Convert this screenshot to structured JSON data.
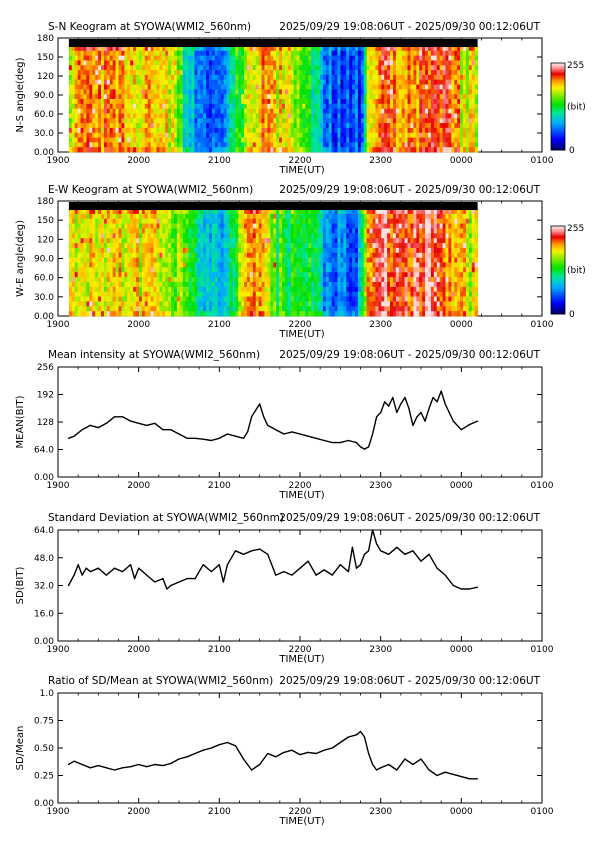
{
  "chart_data": [
    {
      "type": "heatmap",
      "title": "S-N Keogram at SYOWA(WMI2_560nm)",
      "time_range": "2025/09/29 19:08:06UT - 2025/09/30 00:12:06UT",
      "xlabel": "TIME(UT)",
      "ylabel": "N-S angle(deg)",
      "xticks": [
        "1900",
        "2000",
        "2100",
        "2200",
        "2300",
        "0000",
        "0100"
      ],
      "yticks": [
        "0.00",
        "30.0",
        "60.0",
        "90.0",
        "120",
        "150",
        "180"
      ],
      "colorbar": {
        "min_label": "0",
        "max_label": "255",
        "unit": "(bit)"
      },
      "x_range_hours": [
        19,
        25
      ],
      "data_x_range_hours": [
        19.135,
        24.202
      ],
      "y_range": [
        0,
        180
      ],
      "intensity_profile": {
        "t": [
          19.13,
          19.3,
          19.5,
          19.7,
          19.9,
          20.0,
          20.2,
          20.4,
          20.5,
          20.6,
          20.8,
          21.0,
          21.2,
          21.4,
          21.5,
          21.7,
          21.9,
          22.1,
          22.3,
          22.5,
          22.7,
          22.75,
          22.85,
          23.0,
          23.2,
          23.4,
          23.6,
          23.8,
          24.0,
          24.2
        ],
        "v": [
          0.72,
          0.78,
          0.8,
          0.78,
          0.75,
          0.76,
          0.74,
          0.72,
          0.6,
          0.35,
          0.22,
          0.2,
          0.5,
          0.7,
          0.8,
          0.72,
          0.7,
          0.55,
          0.25,
          0.2,
          0.18,
          0.18,
          0.7,
          0.85,
          0.78,
          0.82,
          0.8,
          0.85,
          0.72,
          0.7
        ]
      }
    },
    {
      "type": "heatmap",
      "title": "E-W Keogram at SYOWA(WMI2_560nm)",
      "time_range": "2025/09/29 19:08:06UT - 2025/09/30 00:12:06UT",
      "xlabel": "TIME(UT)",
      "ylabel": "W-E angle(deg)",
      "xticks": [
        "1900",
        "2000",
        "2100",
        "2200",
        "2300",
        "0000",
        "0100"
      ],
      "yticks": [
        "0.00",
        "30.0",
        "60.0",
        "90.0",
        "120",
        "150",
        "180"
      ],
      "colorbar": {
        "min_label": "0",
        "max_label": "255",
        "unit": "(bit)"
      },
      "x_range_hours": [
        19,
        25
      ],
      "data_x_range_hours": [
        19.135,
        24.202
      ],
      "y_range": [
        0,
        180
      ],
      "intensity_profile": {
        "t": [
          19.13,
          19.3,
          19.5,
          19.7,
          19.9,
          20.0,
          20.2,
          20.4,
          20.6,
          20.8,
          21.0,
          21.2,
          21.4,
          21.5,
          21.7,
          21.9,
          22.1,
          22.3,
          22.5,
          22.7,
          22.85,
          23.0,
          23.2,
          23.4,
          23.6,
          23.8,
          24.0,
          24.2
        ],
        "v": [
          0.7,
          0.74,
          0.72,
          0.7,
          0.68,
          0.7,
          0.66,
          0.62,
          0.58,
          0.4,
          0.3,
          0.55,
          0.8,
          0.72,
          0.55,
          0.5,
          0.55,
          0.3,
          0.25,
          0.22,
          0.85,
          0.9,
          0.85,
          0.88,
          0.95,
          0.78,
          0.7,
          0.7
        ]
      }
    },
    {
      "type": "line",
      "title": "Mean intensity at SYOWA(WMI2_560nm)",
      "time_range": "2025/09/29 19:08:06UT - 2025/09/30 00:12:06UT",
      "xlabel": "TIME(UT)",
      "ylabel": "MEAN(BIT)",
      "xticks": [
        "1900",
        "2000",
        "2100",
        "2200",
        "2300",
        "0000",
        "0100"
      ],
      "yticks": [
        "0.00",
        "64.0",
        "128",
        "192",
        "256"
      ],
      "x_range_hours": [
        19,
        25
      ],
      "ylim": [
        0,
        256
      ],
      "series": [
        {
          "x": [
            19.13,
            19.2,
            19.3,
            19.4,
            19.5,
            19.6,
            19.7,
            19.8,
            19.9,
            20.0,
            20.1,
            20.2,
            20.3,
            20.4,
            20.5,
            20.6,
            20.7,
            20.8,
            20.9,
            21.0,
            21.1,
            21.2,
            21.3,
            21.35,
            21.4,
            21.45,
            21.5,
            21.55,
            21.6,
            21.7,
            21.8,
            21.9,
            22.0,
            22.1,
            22.2,
            22.3,
            22.4,
            22.5,
            22.6,
            22.7,
            22.75,
            22.8,
            22.85,
            22.9,
            22.95,
            23.0,
            23.05,
            23.1,
            23.15,
            23.2,
            23.25,
            23.3,
            23.35,
            23.4,
            23.45,
            23.5,
            23.55,
            23.6,
            23.65,
            23.7,
            23.75,
            23.8,
            23.9,
            24.0,
            24.1,
            24.2
          ],
          "y": [
            90,
            95,
            110,
            120,
            115,
            125,
            140,
            140,
            130,
            125,
            120,
            125,
            110,
            110,
            100,
            90,
            90,
            88,
            85,
            90,
            100,
            95,
            90,
            105,
            140,
            155,
            170,
            140,
            120,
            110,
            100,
            105,
            100,
            95,
            90,
            85,
            80,
            80,
            85,
            80,
            70,
            65,
            70,
            100,
            140,
            150,
            175,
            165,
            185,
            150,
            170,
            185,
            160,
            120,
            140,
            150,
            130,
            160,
            185,
            175,
            200,
            170,
            130,
            110,
            122,
            130
          ]
        }
      ]
    },
    {
      "type": "line",
      "title": "Standard Deviation at SYOWA(WMI2_560nm)",
      "time_range": "2025/09/29 19:08:06UT - 2025/09/30 00:12:06UT",
      "xlabel": "TIME(UT)",
      "ylabel": "SD(BIT)",
      "xticks": [
        "1900",
        "2000",
        "2100",
        "2200",
        "2300",
        "0000",
        "0100"
      ],
      "yticks": [
        "0.00",
        "16.0",
        "32.0",
        "48.0",
        "64.0"
      ],
      "x_range_hours": [
        19,
        25
      ],
      "ylim": [
        0,
        64
      ],
      "series": [
        {
          "x": [
            19.13,
            19.2,
            19.25,
            19.3,
            19.35,
            19.4,
            19.5,
            19.6,
            19.7,
            19.8,
            19.9,
            19.95,
            20.0,
            20.1,
            20.2,
            20.3,
            20.35,
            20.4,
            20.5,
            20.6,
            20.7,
            20.8,
            20.9,
            21.0,
            21.05,
            21.1,
            21.2,
            21.3,
            21.4,
            21.5,
            21.6,
            21.7,
            21.8,
            21.9,
            22.0,
            22.1,
            22.2,
            22.3,
            22.4,
            22.5,
            22.6,
            22.65,
            22.7,
            22.75,
            22.8,
            22.85,
            22.9,
            22.95,
            23.0,
            23.1,
            23.2,
            23.3,
            23.4,
            23.5,
            23.6,
            23.7,
            23.8,
            23.9,
            24.0,
            24.1,
            24.2
          ],
          "y": [
            32,
            38,
            44,
            38,
            42,
            40,
            42,
            38,
            42,
            40,
            44,
            36,
            42,
            38,
            34,
            36,
            30,
            32,
            34,
            36,
            36,
            44,
            40,
            44,
            34,
            44,
            52,
            50,
            52,
            53,
            50,
            38,
            40,
            38,
            42,
            46,
            38,
            41,
            38,
            44,
            40,
            54,
            42,
            44,
            50,
            52,
            64,
            56,
            52,
            50,
            54,
            50,
            52,
            46,
            50,
            42,
            38,
            32,
            30,
            30,
            31
          ]
        }
      ]
    },
    {
      "type": "line",
      "title": "Ratio of SD/Mean at SYOWA(WMI2_560nm)",
      "time_range": "2025/09/29 19:08:06UT - 2025/09/30 00:12:06UT",
      "xlabel": "TIME(UT)",
      "ylabel": "SD/Mean",
      "xticks": [
        "1900",
        "2000",
        "2100",
        "2200",
        "2300",
        "0000",
        "0100"
      ],
      "yticks": [
        "0.00",
        "0.25",
        "0.50",
        "0.75",
        "1.0"
      ],
      "x_range_hours": [
        19,
        25
      ],
      "ylim": [
        0,
        1
      ],
      "series": [
        {
          "x": [
            19.13,
            19.2,
            19.3,
            19.4,
            19.5,
            19.6,
            19.7,
            19.8,
            19.9,
            20.0,
            20.1,
            20.2,
            20.3,
            20.4,
            20.5,
            20.6,
            20.7,
            20.8,
            20.9,
            21.0,
            21.1,
            21.2,
            21.3,
            21.4,
            21.5,
            21.6,
            21.7,
            21.8,
            21.9,
            22.0,
            22.1,
            22.2,
            22.3,
            22.4,
            22.5,
            22.6,
            22.7,
            22.75,
            22.8,
            22.85,
            22.9,
            22.95,
            23.0,
            23.1,
            23.2,
            23.3,
            23.4,
            23.5,
            23.6,
            23.7,
            23.8,
            23.9,
            24.0,
            24.1,
            24.2
          ],
          "y": [
            0.35,
            0.38,
            0.35,
            0.32,
            0.34,
            0.32,
            0.3,
            0.32,
            0.33,
            0.35,
            0.33,
            0.35,
            0.34,
            0.36,
            0.4,
            0.42,
            0.45,
            0.48,
            0.5,
            0.53,
            0.55,
            0.52,
            0.4,
            0.3,
            0.35,
            0.45,
            0.42,
            0.46,
            0.48,
            0.44,
            0.46,
            0.45,
            0.48,
            0.5,
            0.55,
            0.6,
            0.62,
            0.65,
            0.6,
            0.45,
            0.35,
            0.3,
            0.32,
            0.35,
            0.3,
            0.4,
            0.35,
            0.4,
            0.3,
            0.25,
            0.28,
            0.26,
            0.24,
            0.22,
            0.22
          ]
        }
      ]
    }
  ]
}
